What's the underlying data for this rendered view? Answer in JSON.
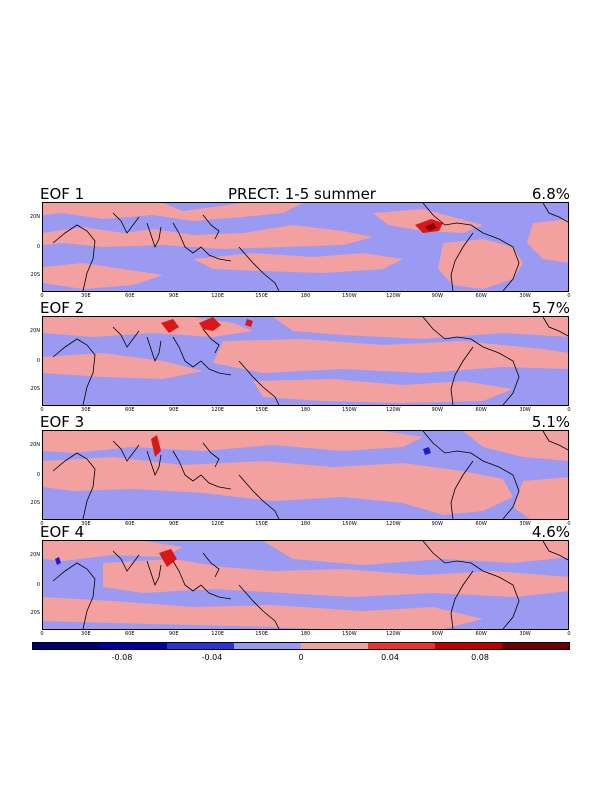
{
  "figure": {
    "title": "PRECT: 1-5 summer",
    "y_ticks": [
      "20N",
      "0",
      "20S"
    ],
    "x_ticks": [
      "0",
      "30E",
      "60E",
      "90E",
      "120E",
      "150E",
      "180",
      "150W",
      "120W",
      "90W",
      "60W",
      "30W",
      "0"
    ]
  },
  "panels": [
    {
      "label": "EOF 1",
      "variance": "6.8%"
    },
    {
      "label": "EOF 2",
      "variance": "5.7%"
    },
    {
      "label": "EOF 3",
      "variance": "5.1%"
    },
    {
      "label": "EOF 4",
      "variance": "4.6%"
    }
  ],
  "colorbar": {
    "labels": [
      "-0.08",
      "-0.04",
      "0",
      "0.04",
      "0.08"
    ],
    "colors": [
      "#00006e",
      "#0000a8",
      "#3030d8",
      "#9a9af2",
      "#f3a0a0",
      "#e63434",
      "#c00000",
      "#700000"
    ]
  },
  "colors": {
    "negative_weak": "#9a9af2",
    "positive_weak": "#f3a0a0",
    "positive_strong": "#d81818",
    "negative_strong": "#1c1cc8",
    "coastline": "#000000"
  }
}
